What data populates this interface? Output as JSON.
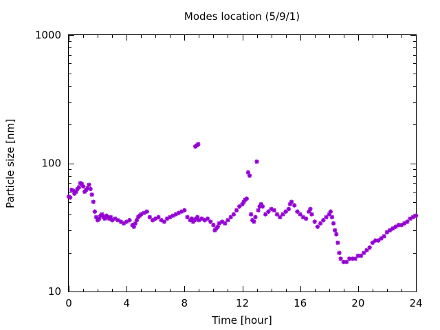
{
  "chart_data": {
    "type": "scatter",
    "title": "Modes location (5/9/1)",
    "xlabel": "Time [hour]",
    "ylabel": "Particle size [nm]",
    "xlim": [
      0,
      24
    ],
    "ylim": [
      10,
      1000
    ],
    "yscale": "log",
    "x_ticks": [
      {
        "value": 0,
        "label": "0"
      },
      {
        "value": 4,
        "label": "4"
      },
      {
        "value": 8,
        "label": "8"
      },
      {
        "value": 12,
        "label": "12"
      },
      {
        "value": 16,
        "label": "16"
      },
      {
        "value": 20,
        "label": "20"
      },
      {
        "value": 24,
        "label": "24"
      }
    ],
    "y_ticks": [
      {
        "value": 10,
        "label": "10"
      },
      {
        "value": 100,
        "label": "100"
      },
      {
        "value": 1000,
        "label": "1000"
      }
    ],
    "grid": false,
    "marker_color": "#9400d3",
    "series": [
      {
        "x": [
          0.0,
          0.1,
          0.2,
          0.3,
          0.4,
          0.5,
          0.6,
          0.7,
          0.8,
          0.9,
          1.0,
          1.1,
          1.2,
          1.3,
          1.4,
          1.5,
          1.6,
          1.7,
          1.8,
          1.9,
          2.0,
          2.1,
          2.2,
          2.3,
          2.4,
          2.5,
          2.6,
          2.7,
          2.8,
          2.9,
          3.0,
          3.2,
          3.4,
          3.6,
          3.8,
          4.0,
          4.2,
          4.4,
          4.5,
          4.6,
          4.7,
          4.8,
          4.9,
          5.0,
          5.2,
          5.4,
          5.6,
          5.8,
          6.0,
          6.2,
          6.4,
          6.6,
          6.8,
          7.0,
          7.2,
          7.4,
          7.6,
          7.8,
          8.0,
          8.2,
          8.4,
          8.5,
          8.6,
          8.7,
          8.8,
          8.9,
          9.0,
          9.2,
          9.4,
          9.6,
          9.8,
          10.0,
          10.1,
          10.2,
          10.3,
          10.4,
          10.6,
          10.8,
          11.0,
          11.2,
          11.4,
          11.6,
          11.8,
          12.0,
          12.1,
          12.2,
          12.3,
          12.4,
          12.5,
          12.6,
          12.7,
          12.8,
          12.9,
          13.0,
          13.1,
          13.2,
          13.3,
          13.4,
          13.6,
          13.8,
          14.0,
          14.2,
          14.4,
          14.6,
          14.8,
          15.0,
          15.2,
          15.3,
          15.4,
          15.6,
          15.8,
          16.0,
          16.2,
          16.4,
          16.6,
          16.7,
          16.8,
          17.0,
          17.2,
          17.4,
          17.6,
          17.8,
          18.0,
          18.1,
          18.2,
          18.3,
          18.4,
          18.5,
          18.6,
          18.7,
          18.8,
          19.0,
          19.2,
          19.4,
          19.6,
          19.8,
          20.0,
          20.2,
          20.4,
          20.6,
          20.8,
          21.0,
          21.2,
          21.4,
          21.6,
          21.8,
          22.0,
          22.2,
          22.4,
          22.6,
          22.8,
          23.0,
          23.2,
          23.4,
          23.6,
          23.8,
          24.0
        ],
        "y": [
          55,
          54,
          62,
          61,
          58,
          60,
          63,
          65,
          70,
          69,
          66,
          60,
          62,
          64,
          68,
          63,
          57,
          50,
          42,
          38,
          36,
          37,
          39,
          40,
          38,
          37,
          39,
          38,
          37,
          38,
          36,
          37,
          36,
          35,
          34,
          35,
          36,
          33,
          32,
          34,
          36,
          38,
          39,
          40,
          41,
          42,
          38,
          36,
          37,
          38,
          36,
          35,
          37,
          38,
          39,
          40,
          41,
          42,
          43,
          38,
          36,
          37,
          35,
          36,
          37,
          38,
          36,
          37,
          36,
          37,
          35,
          33,
          30,
          31,
          32,
          34,
          35,
          34,
          36,
          38,
          40,
          43,
          46,
          48,
          50,
          52,
          53,
          85,
          80,
          40,
          36,
          35,
          38,
          103,
          43,
          46,
          48,
          46,
          40,
          42,
          44,
          43,
          40,
          38,
          40,
          42,
          44,
          48,
          50,
          47,
          42,
          40,
          38,
          37,
          42,
          44,
          40,
          35,
          32,
          34,
          36,
          38,
          40,
          42,
          38,
          34,
          30,
          28,
          24,
          20,
          18,
          17,
          17,
          18,
          18,
          18,
          19,
          19,
          20,
          21,
          22,
          24,
          25,
          25,
          26,
          27,
          29,
          30,
          31,
          32,
          33,
          33,
          34,
          35,
          37,
          38,
          39
        ]
      },
      {
        "x": [
          8.75,
          8.85,
          8.95
        ],
        "y": [
          135,
          138,
          141
        ]
      }
    ]
  }
}
